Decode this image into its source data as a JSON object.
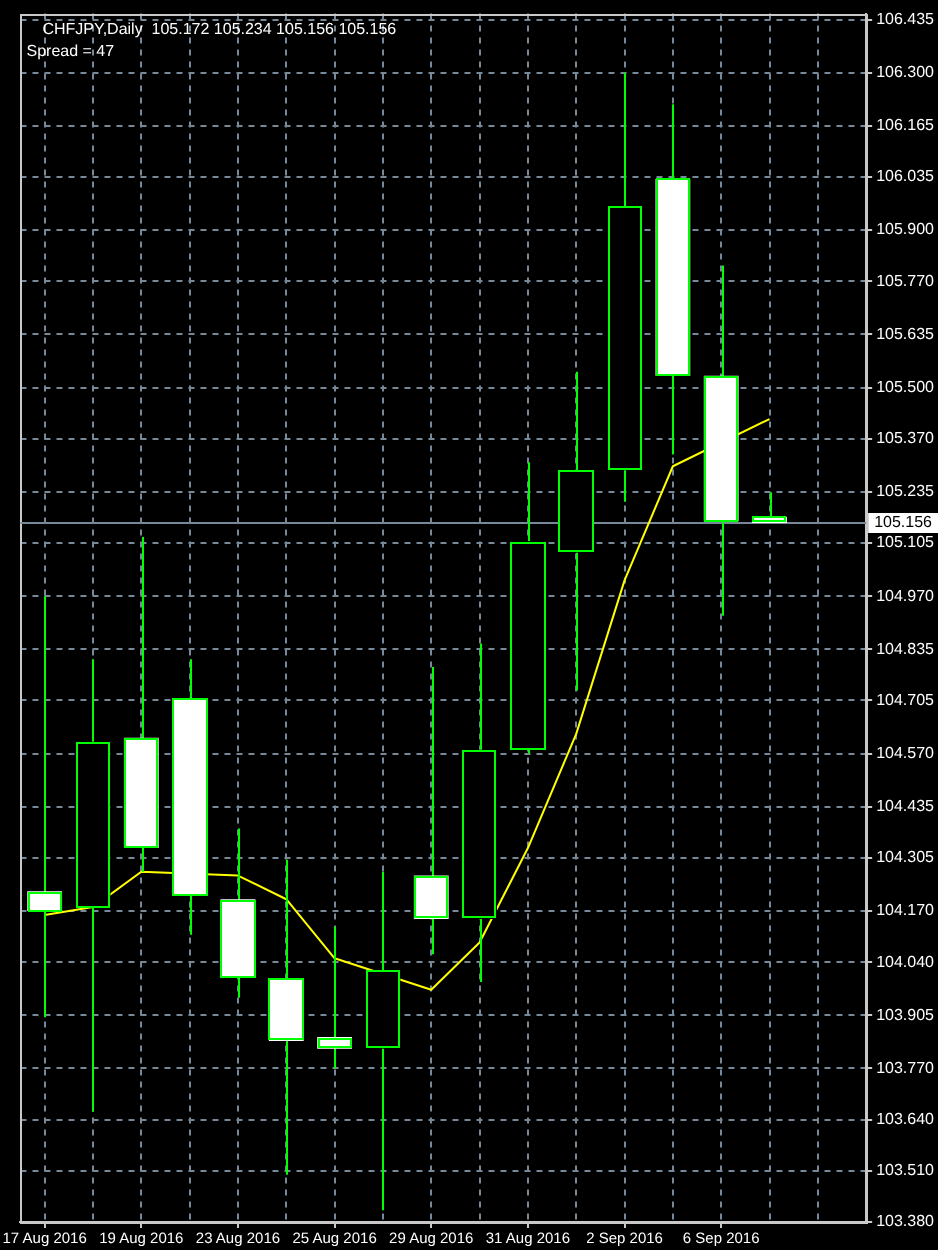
{
  "chart_data": {
    "type": "candlestick",
    "title": "CHFJPY,Daily  105.172 105.234 105.156 105.156",
    "subtitle": "Spread = 47",
    "categories": [
      "17 Aug 2016",
      null,
      "19 Aug 2016",
      null,
      "23 Aug 2016",
      null,
      "25 Aug 2016",
      null,
      "29 Aug 2016",
      null,
      "31 Aug 2016",
      null,
      "2 Sep 2016",
      null,
      "6 Sep 2016",
      null
    ],
    "ohlc": [
      [
        104.22,
        104.97,
        103.9,
        104.17
      ],
      [
        104.18,
        104.81,
        103.66,
        104.6
      ],
      [
        104.61,
        105.12,
        104.27,
        104.33
      ],
      [
        104.71,
        104.81,
        104.11,
        104.21
      ],
      [
        104.2,
        104.38,
        103.95,
        104.0
      ],
      [
        104.0,
        104.3,
        103.5,
        103.84
      ],
      [
        103.85,
        104.13,
        103.77,
        103.82
      ],
      [
        103.82,
        104.27,
        103.41,
        104.02
      ],
      [
        104.26,
        104.79,
        104.06,
        104.15
      ],
      [
        104.15,
        104.85,
        103.99,
        104.58
      ],
      [
        104.58,
        105.31,
        104.57,
        105.11
      ],
      [
        105.08,
        105.54,
        104.73,
        105.29
      ],
      [
        105.29,
        106.3,
        105.21,
        105.96
      ],
      [
        106.03,
        106.22,
        105.33,
        105.53
      ],
      [
        105.53,
        105.81,
        104.92,
        105.16
      ],
      [
        105.172,
        105.234,
        105.156,
        105.156
      ]
    ],
    "color": "#00ff00",
    "colors": [
      "#ffffff",
      "#000000",
      "#ffffff",
      "#ffffff",
      "#ffffff",
      "#ffffff",
      "#ffffff",
      "#000000",
      "#ffffff",
      "#000000",
      "#000000",
      "#000000",
      "#000000",
      "#ffffff",
      "#ffffff",
      "#ffffff"
    ],
    "series": [
      {
        "type": "line",
        "color": "#ffff00",
        "values": [
          104.16,
          104.18,
          104.27,
          null,
          104.26,
          104.2,
          104.05,
          null,
          103.97,
          104.09,
          104.33,
          104.62,
          105.01,
          105.3,
          null,
          105.42
        ]
      }
    ],
    "ylim": [
      103.38,
      106.45
    ],
    "yticks": [
      106.435,
      {
        "value": 106.3,
        "label": "106.300"
      },
      106.165,
      106.035,
      {
        "value": 105.9,
        "label": "105.900"
      },
      {
        "value": 105.77,
        "label": "105.770"
      },
      105.635,
      {
        "value": 105.5,
        "label": "105.500"
      },
      {
        "value": 105.37,
        "label": "105.370"
      },
      105.235,
      105.105,
      {
        "value": 104.97,
        "label": "104.970"
      },
      104.835,
      104.705,
      {
        "value": 104.57,
        "label": "104.570"
      },
      104.435,
      104.305,
      {
        "value": 104.17,
        "label": "104.170"
      },
      {
        "value": 104.04,
        "label": "104.040"
      },
      103.905,
      {
        "value": 103.77,
        "label": "103.770"
      },
      {
        "value": 103.64,
        "label": "103.640"
      },
      {
        "value": 103.51,
        "label": "103.510"
      },
      {
        "value": 103.38,
        "label": "103.380"
      }
    ],
    "ref_lines": [
      {
        "axis": "y",
        "value": 105.156,
        "label": "105.156",
        "color": "#778899"
      }
    ],
    "grid": true
  }
}
